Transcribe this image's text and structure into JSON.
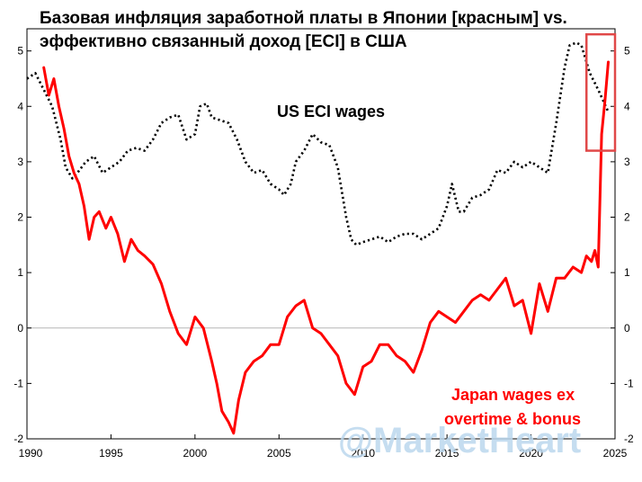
{
  "chart_data": {
    "type": "line",
    "title_lines": [
      "Базовая инфляция заработной платы в Японии [красным] vs.",
      "эффективно связанный доход [ECI] в США"
    ],
    "xlabel": "",
    "ylabel": "",
    "xlim": [
      1990,
      2025
    ],
    "ylim": [
      -2,
      5.4
    ],
    "x_ticks": [
      1990,
      1995,
      2000,
      2005,
      2010,
      2015,
      2020,
      2025
    ],
    "y_ticks": [
      -2,
      -1,
      0,
      1,
      2,
      3,
      4,
      5
    ],
    "y_axis_both_sides": true,
    "zero_line": true,
    "grid": false,
    "legend": "none",
    "annotations": {
      "us_label": "US ECI wages",
      "japan_label_line1": "Japan wages ex",
      "japan_label_line2": "overtime & bonus",
      "highlight_box": {
        "x_range": [
          2023.3,
          2025.0
        ],
        "y_range": [
          3.2,
          5.3
        ],
        "color": "#e04848"
      }
    },
    "watermark": "@MarketHeart",
    "series": [
      {
        "id": "us",
        "color": "#000000",
        "style": "dotted",
        "x": [
          1990.0,
          1990.5,
          1991.0,
          1991.5,
          1992.0,
          1992.3,
          1992.7,
          1993.0,
          1993.5,
          1994.0,
          1994.5,
          1995.0,
          1995.5,
          1996.0,
          1996.5,
          1997.0,
          1997.5,
          1998.0,
          1998.5,
          1999.0,
          1999.5,
          2000.0,
          2000.3,
          2000.7,
          2001.0,
          2001.5,
          2002.0,
          2002.5,
          2003.0,
          2003.5,
          2004.0,
          2004.5,
          2005.0,
          2005.3,
          2005.7,
          2006.0,
          2006.5,
          2007.0,
          2007.5,
          2008.0,
          2008.5,
          2009.0,
          2009.3,
          2009.6,
          2010.0,
          2010.5,
          2011.0,
          2011.5,
          2012.0,
          2012.5,
          2013.0,
          2013.5,
          2014.0,
          2014.5,
          2015.0,
          2015.3,
          2015.7,
          2016.0,
          2016.5,
          2017.0,
          2017.5,
          2018.0,
          2018.5,
          2019.0,
          2019.5,
          2020.0,
          2020.5,
          2021.0,
          2021.5,
          2022.0,
          2022.3,
          2022.7,
          2023.0,
          2023.5,
          2024.0,
          2024.3,
          2024.6
        ],
        "y": [
          4.5,
          4.6,
          4.3,
          4.0,
          3.4,
          2.9,
          2.7,
          2.8,
          3.0,
          3.1,
          2.8,
          2.9,
          3.0,
          3.2,
          3.25,
          3.2,
          3.4,
          3.7,
          3.8,
          3.85,
          3.4,
          3.5,
          4.0,
          4.05,
          3.8,
          3.75,
          3.7,
          3.4,
          3.0,
          2.8,
          2.85,
          2.6,
          2.5,
          2.4,
          2.6,
          3.0,
          3.2,
          3.5,
          3.35,
          3.3,
          2.9,
          2.0,
          1.6,
          1.5,
          1.55,
          1.6,
          1.65,
          1.55,
          1.65,
          1.7,
          1.7,
          1.6,
          1.7,
          1.8,
          2.2,
          2.6,
          2.1,
          2.1,
          2.35,
          2.4,
          2.5,
          2.85,
          2.8,
          3.0,
          2.9,
          3.0,
          2.9,
          2.8,
          3.7,
          4.7,
          5.1,
          5.15,
          5.1,
          4.6,
          4.3,
          4.1,
          3.9
        ]
      },
      {
        "id": "japan",
        "color": "#ff0000",
        "style": "solid",
        "x": [
          1991.0,
          1991.3,
          1991.6,
          1991.9,
          1992.2,
          1992.5,
          1992.8,
          1993.1,
          1993.4,
          1993.7,
          1994.0,
          1994.3,
          1994.7,
          1995.0,
          1995.4,
          1995.8,
          1996.2,
          1996.6,
          1997.0,
          1997.5,
          1998.0,
          1998.5,
          1999.0,
          1999.5,
          2000.0,
          2000.5,
          2001.0,
          2001.3,
          2001.6,
          2002.0,
          2002.3,
          2002.6,
          2003.0,
          2003.5,
          2004.0,
          2004.5,
          2005.0,
          2005.5,
          2006.0,
          2006.5,
          2007.0,
          2007.5,
          2008.0,
          2008.5,
          2009.0,
          2009.5,
          2010.0,
          2010.5,
          2011.0,
          2011.5,
          2012.0,
          2012.5,
          2013.0,
          2013.5,
          2014.0,
          2014.5,
          2015.0,
          2015.5,
          2016.0,
          2016.5,
          2017.0,
          2017.5,
          2018.0,
          2018.5,
          2019.0,
          2019.5,
          2020.0,
          2020.5,
          2021.0,
          2021.5,
          2022.0,
          2022.5,
          2023.0,
          2023.3,
          2023.6,
          2023.8,
          2024.0,
          2024.2,
          2024.4,
          2024.6
        ],
        "y": [
          4.7,
          4.2,
          4.5,
          4.0,
          3.6,
          3.1,
          2.8,
          2.6,
          2.2,
          1.6,
          2.0,
          2.1,
          1.8,
          2.0,
          1.7,
          1.2,
          1.6,
          1.4,
          1.3,
          1.15,
          0.8,
          0.3,
          -0.1,
          -0.3,
          0.2,
          0.0,
          -0.6,
          -1.0,
          -1.5,
          -1.7,
          -1.9,
          -1.3,
          -0.8,
          -0.6,
          -0.5,
          -0.3,
          -0.3,
          0.2,
          0.4,
          0.5,
          0.0,
          -0.1,
          -0.3,
          -0.5,
          -1.0,
          -1.2,
          -0.7,
          -0.6,
          -0.3,
          -0.3,
          -0.5,
          -0.6,
          -0.8,
          -0.4,
          0.1,
          0.3,
          0.2,
          0.1,
          0.3,
          0.5,
          0.6,
          0.5,
          0.7,
          0.9,
          0.4,
          0.5,
          -0.1,
          0.8,
          0.3,
          0.9,
          0.9,
          1.1,
          1.0,
          1.3,
          1.2,
          1.4,
          1.1,
          3.5,
          4.1,
          4.8
        ]
      }
    ]
  }
}
